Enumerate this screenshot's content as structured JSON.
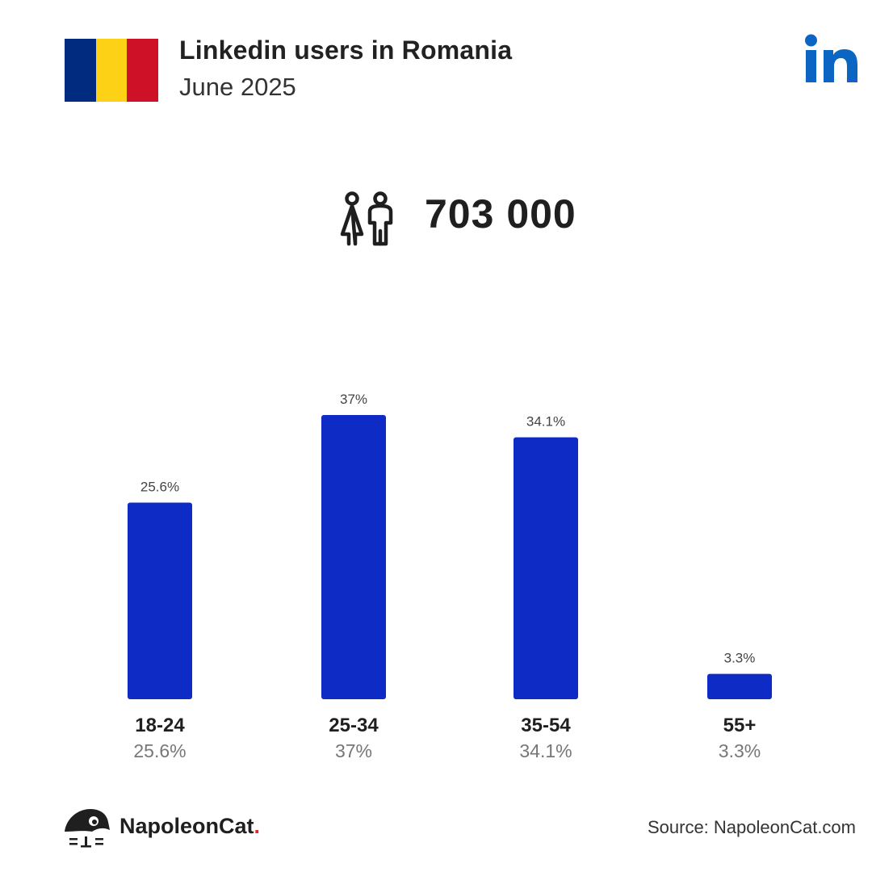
{
  "header": {
    "title": "Linkedin users in Romania",
    "subtitle": "June 2025",
    "flag_colors": [
      "#002B7F",
      "#FCD116",
      "#CE1126"
    ],
    "brand_icon": "linkedin-logo",
    "brand_color": "#0A66C2"
  },
  "summary": {
    "icon": "users-icon",
    "total": "703 000"
  },
  "chart_data": {
    "type": "bar",
    "categories": [
      "18-24",
      "25-34",
      "35-54",
      "55+"
    ],
    "values": [
      25.6,
      37,
      34.1,
      3.3
    ],
    "value_labels": [
      "25.6%",
      "37%",
      "34.1%",
      "3.3%"
    ],
    "bar_color": "#0F2BC5",
    "grid": false,
    "legend": "none"
  },
  "footer": {
    "brand_name": "NapoleonCat",
    "brand_dot": ".",
    "source": "Source: NapoleonCat.com"
  }
}
